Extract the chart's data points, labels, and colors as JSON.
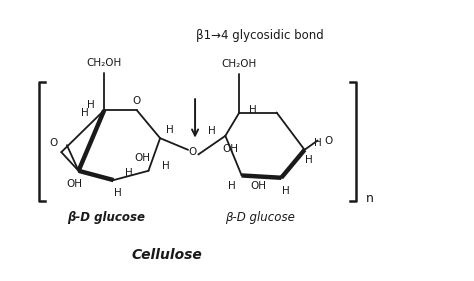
{
  "title": "Cellulose",
  "annotation": "β1→4 glycosidic bond",
  "label_left": "β-D glucose",
  "label_right": "β-D glucose",
  "subscript_label": "n",
  "bg_color": "#ffffff",
  "line_color": "#1a1a1a",
  "text_color": "#1a1a1a",
  "fig_width": 4.74,
  "fig_height": 2.81,
  "dpi": 100
}
